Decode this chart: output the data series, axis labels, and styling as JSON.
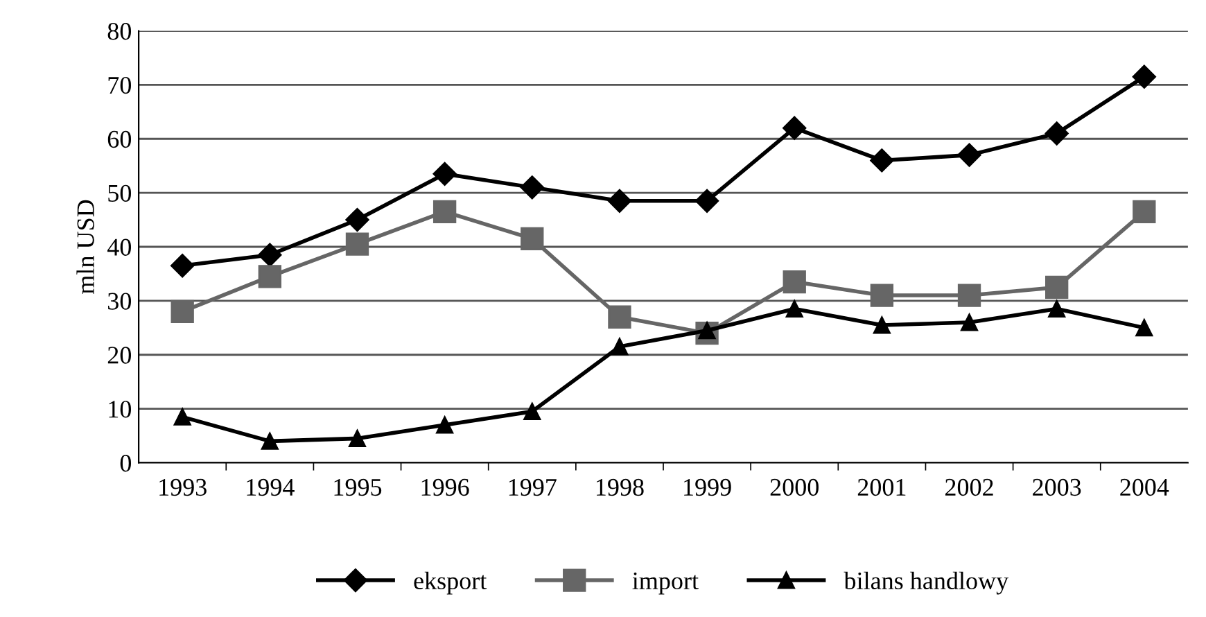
{
  "chart_data": {
    "type": "line",
    "ylabel": "mln USD",
    "categories": [
      "1993",
      "1994",
      "1995",
      "1996",
      "1997",
      "1998",
      "1999",
      "2000",
      "2001",
      "2002",
      "2003",
      "2004"
    ],
    "series": [
      {
        "name": "eksport",
        "color": "#000000",
        "marker": "diamond",
        "values": [
          36.5,
          38.5,
          45,
          53.5,
          51,
          48.5,
          48.5,
          62,
          56,
          57,
          61,
          71.5
        ]
      },
      {
        "name": "import",
        "color": "#666666",
        "marker": "square",
        "values": [
          28,
          34.5,
          40.5,
          46.5,
          41.5,
          27,
          24,
          33.5,
          31,
          31,
          32.5,
          46.5
        ]
      },
      {
        "name": "bilans handlowy",
        "color": "#000000",
        "marker": "triangle",
        "values": [
          8.5,
          4,
          4.5,
          7,
          9.5,
          21.5,
          24.5,
          28.5,
          25.5,
          26,
          28.5,
          25
        ]
      }
    ],
    "ylim": [
      0,
      80
    ],
    "yticks": [
      0,
      10,
      20,
      30,
      40,
      50,
      60,
      70,
      80
    ],
    "grid": "y",
    "legend": "bottom"
  }
}
